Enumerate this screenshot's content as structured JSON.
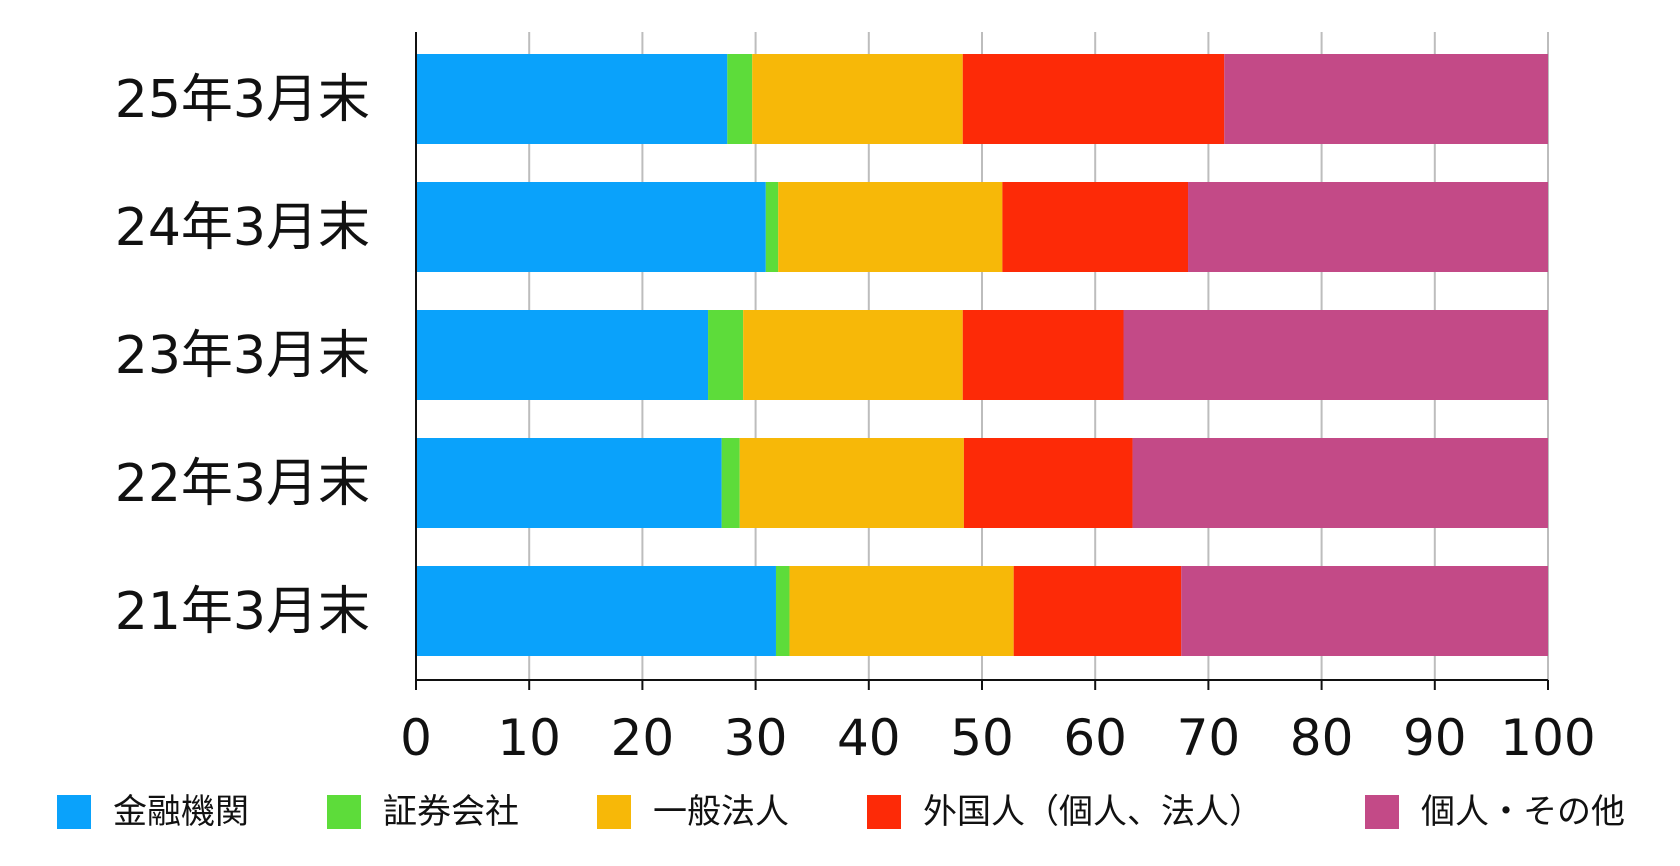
{
  "chart_data": {
    "type": "bar",
    "orientation": "horizontal",
    "stacked": true,
    "categories": [
      "25年3月末",
      "24年3月末",
      "23年3月末",
      "22年3月末",
      "21年3月末"
    ],
    "series": [
      {
        "name": "金融機関",
        "color": "#0aa2fb",
        "values": [
          27.5,
          30.9,
          25.8,
          27.0,
          31.8
        ]
      },
      {
        "name": "証券会社",
        "color": "#5ddc3a",
        "values": [
          2.2,
          1.1,
          3.1,
          1.6,
          1.2
        ]
      },
      {
        "name": "一般法人",
        "color": "#f7b808",
        "values": [
          18.6,
          19.8,
          19.4,
          19.8,
          19.8
        ]
      },
      {
        "name": "外国人（個人、法人）",
        "color": "#fd2a07",
        "values": [
          23.1,
          16.4,
          14.2,
          14.9,
          14.8
        ]
      },
      {
        "name": "個人・その他",
        "color": "#c34a87",
        "values": [
          28.6,
          31.8,
          37.5,
          36.7,
          32.4
        ]
      }
    ],
    "xlim": [
      0,
      100
    ],
    "xticks": [
      "0",
      "10",
      "20",
      "30",
      "40",
      "50",
      "60",
      "70",
      "80",
      "90",
      "100"
    ],
    "grid": true,
    "legend_position": "bottom"
  }
}
